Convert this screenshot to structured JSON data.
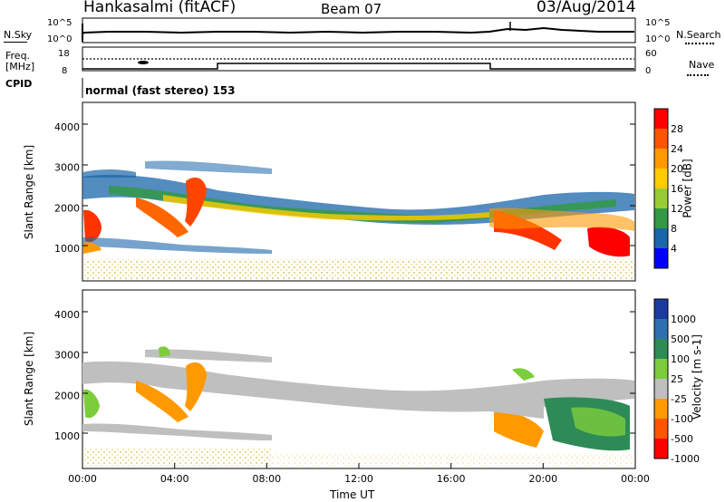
{
  "header": {
    "station": "Hankasalmi (fitACF)",
    "beam": "Beam 07",
    "date": "03/Aug/2014"
  },
  "top_panels": {
    "nsky_label": "N.Sky",
    "nsearch_label": "N.Search",
    "nsky_ticks": [
      "10^5",
      "10^0"
    ],
    "nsearch_ticks": [
      "10^5",
      "10^0"
    ],
    "freq_label_1": "Freq.",
    "freq_label_2": "[MHz]",
    "freq_ticks": [
      "18",
      "8"
    ],
    "nave_label": "Nave",
    "nave_ticks": [
      "60",
      "0"
    ],
    "cpid_label": "CPID",
    "cpid_text": "normal (fast stereo) 153"
  },
  "chart_data": [
    {
      "type": "heatmap",
      "title": "",
      "xlabel": "Time UT",
      "ylabel": "Slant Range [km]",
      "xlim": [
        "00:00",
        "24:00"
      ],
      "ylim": [
        200,
        4600
      ],
      "x_ticks": [
        "00:00",
        "04:00",
        "08:00",
        "12:00",
        "16:00",
        "20:00",
        "00:00"
      ],
      "y_ticks": [
        1000,
        2000,
        3000,
        4000
      ],
      "colorbar": {
        "label": "Power [dB]",
        "ticks": [
          28,
          24,
          20,
          16,
          12,
          8,
          4
        ],
        "colors": [
          "#ff0000",
          "#ff5500",
          "#ff9900",
          "#ffcc00",
          "#99cc33",
          "#339944",
          "#1a66aa",
          "#0000ff"
        ]
      }
    },
    {
      "type": "heatmap",
      "title": "",
      "xlabel": "Time UT",
      "ylabel": "Slant Range [km]",
      "xlim": [
        "00:00",
        "24:00"
      ],
      "ylim": [
        200,
        4600
      ],
      "x_ticks": [
        "00:00",
        "04:00",
        "08:00",
        "12:00",
        "16:00",
        "20:00",
        "00:00"
      ],
      "y_ticks": [
        1000,
        2000,
        3000,
        4000
      ],
      "colorbar": {
        "label": "Velocity [m s-1]",
        "ticks": [
          "1000",
          "500",
          "100",
          "25",
          "-25",
          "-100",
          "-500",
          "-1000"
        ],
        "colors": [
          "#1a3aa0",
          "#2f6fb0",
          "#2e8b57",
          "#7ccd3c",
          "#bfbfbf",
          "#ff9900",
          "#ff5500",
          "#ff0000"
        ]
      }
    }
  ],
  "x_axis_title": "Time UT"
}
